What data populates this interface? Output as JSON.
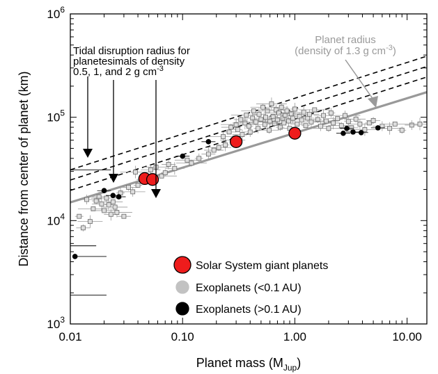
{
  "chart_data": {
    "type": "scatter",
    "xlabel_main": "Planet mass (M",
    "xlabel_sub": "Jup",
    "xlabel_close": ")",
    "ylabel": "Distance from center of planet (km)",
    "x_scale": "log",
    "y_scale": "log",
    "xlim": [
      0.01,
      15
    ],
    "ylim": [
      1000,
      1000000
    ],
    "x_ticks": [
      {
        "value": 0.01,
        "label": "0.01"
      },
      {
        "value": 0.1,
        "label": "0.10"
      },
      {
        "value": 1,
        "label": "1.00"
      },
      {
        "value": 10,
        "label": "10.00"
      }
    ],
    "y_ticks": [
      {
        "value": 1000,
        "base": "10",
        "exp": "3"
      },
      {
        "value": 10000,
        "base": "10",
        "exp": "4"
      },
      {
        "value": 100000,
        "base": "10",
        "exp": "5"
      },
      {
        "value": 1000000,
        "base": "10",
        "exp": "6"
      }
    ],
    "grid": false,
    "legend_position": "bottom-right",
    "legend": [
      {
        "label": "Solar System giant planets",
        "color": "#ee1c1c",
        "edge": "#000000"
      },
      {
        "label": "Exoplanets (<0.1 AU)",
        "color": "#c2c2c2",
        "edge": "#c2c2c2"
      },
      {
        "label": "Exoplanets (>0.1 AU)",
        "color": "#000000",
        "edge": "#000000"
      }
    ],
    "lines": [
      {
        "name": "tidal disruption, density 0.5",
        "style": "dashed",
        "color": "#000000",
        "x": [
          0.01,
          15
        ],
        "y": [
          31000,
          390000
        ]
      },
      {
        "name": "tidal disruption, density 1",
        "style": "dashed",
        "color": "#000000",
        "x": [
          0.01,
          15
        ],
        "y": [
          24700,
          310000
        ]
      },
      {
        "name": "tidal disruption, density 2",
        "style": "dashed",
        "color": "#000000",
        "x": [
          0.01,
          15
        ],
        "y": [
          19600,
          245000
        ]
      },
      {
        "name": "planet radius, density 1.3",
        "style": "solid",
        "color": "#999999",
        "x": [
          0.01,
          15
        ],
        "y": [
          15000,
          175000
        ]
      }
    ],
    "solar_system": [
      {
        "x": 0.046,
        "y": 25500
      },
      {
        "x": 0.054,
        "y": 25000
      },
      {
        "x": 0.3,
        "y": 58000
      },
      {
        "x": 1.0,
        "y": 70000
      }
    ],
    "exo_far": [
      {
        "x": 0.011,
        "y": 4500,
        "xerr": [
          0.011,
          0.021
        ]
      },
      {
        "x": 0.02,
        "y": 19500
      },
      {
        "x": 0.024,
        "y": 17500
      },
      {
        "x": 0.027,
        "y": 17000
      },
      {
        "x": 0.1,
        "y": 42000
      },
      {
        "x": 0.17,
        "y": 58000
      },
      {
        "x": 2.7,
        "y": 70000
      },
      {
        "x": 2.9,
        "y": 78000
      },
      {
        "x": 3.3,
        "y": 72000
      },
      {
        "x": 3.9,
        "y": 71000
      },
      {
        "x": 5.5,
        "y": 79000
      }
    ],
    "exo_close_xerr_only": [
      {
        "x": 0.011,
        "y": 5700,
        "xerr": [
          0.01,
          0.017
        ]
      },
      {
        "x": 0.011,
        "y": 1900,
        "xerr": [
          0.01,
          0.021
        ]
      },
      {
        "x": 0.011,
        "y": 31000,
        "xerr": [
          0.01,
          0.023
        ]
      }
    ],
    "exo_close": {
      "marker": "square",
      "color": "#c2c2c2",
      "points": [
        [
          0.012,
          11000
        ],
        [
          0.013,
          8500
        ],
        [
          0.014,
          16000
        ],
        [
          0.015,
          9800
        ],
        [
          0.016,
          13000
        ],
        [
          0.017,
          15500
        ],
        [
          0.018,
          17000
        ],
        [
          0.019,
          14500
        ],
        [
          0.02,
          12500
        ],
        [
          0.021,
          16500
        ],
        [
          0.022,
          14200
        ],
        [
          0.023,
          11500
        ],
        [
          0.024,
          15200
        ],
        [
          0.025,
          13500
        ],
        [
          0.026,
          12000
        ],
        [
          0.028,
          18500
        ],
        [
          0.03,
          11000
        ],
        [
          0.033,
          21000
        ],
        [
          0.036,
          19000
        ],
        [
          0.038,
          29500
        ],
        [
          0.04,
          22000
        ],
        [
          0.045,
          25000
        ],
        [
          0.052,
          31000
        ],
        [
          0.058,
          33000
        ],
        [
          0.065,
          27000
        ],
        [
          0.07,
          29000
        ],
        [
          0.075,
          35000
        ],
        [
          0.085,
          32000
        ],
        [
          0.11,
          38500
        ],
        [
          0.12,
          36000
        ],
        [
          0.14,
          40000
        ],
        [
          0.17,
          44000
        ],
        [
          0.19,
          48000
        ],
        [
          0.21,
          51000
        ],
        [
          0.23,
          65000
        ],
        [
          0.24,
          54000
        ],
        [
          0.26,
          72000
        ],
        [
          0.27,
          80000
        ],
        [
          0.28,
          60000
        ],
        [
          0.3,
          85000
        ],
        [
          0.31,
          76000
        ],
        [
          0.33,
          95000
        ],
        [
          0.34,
          68000
        ],
        [
          0.36,
          88000
        ],
        [
          0.37,
          105000
        ],
        [
          0.39,
          82000
        ],
        [
          0.4,
          72000
        ],
        [
          0.42,
          98000
        ],
        [
          0.43,
          115000
        ],
        [
          0.45,
          90000
        ],
        [
          0.47,
          78000
        ],
        [
          0.48,
          107000
        ],
        [
          0.5,
          95000
        ],
        [
          0.52,
          125000
        ],
        [
          0.54,
          85000
        ],
        [
          0.55,
          100000
        ],
        [
          0.57,
          115000
        ],
        [
          0.59,
          75000
        ],
        [
          0.6,
          92000
        ],
        [
          0.62,
          135000
        ],
        [
          0.64,
          102000
        ],
        [
          0.66,
          87000
        ],
        [
          0.68,
          118000
        ],
        [
          0.7,
          95000
        ],
        [
          0.72,
          110000
        ],
        [
          0.74,
          80000
        ],
        [
          0.76,
          125000
        ],
        [
          0.78,
          98000
        ],
        [
          0.8,
          88000
        ],
        [
          0.82,
          105000
        ],
        [
          0.85,
          115000
        ],
        [
          0.88,
          92000
        ],
        [
          0.9,
          78000
        ],
        [
          0.93,
          108000
        ],
        [
          0.96,
          98000
        ],
        [
          1.0,
          120000
        ],
        [
          1.05,
          86000
        ],
        [
          1.1,
          102000
        ],
        [
          1.15,
          94000
        ],
        [
          1.2,
          112000
        ],
        [
          1.25,
          83000
        ],
        [
          1.3,
          98000
        ],
        [
          1.35,
          107000
        ],
        [
          1.4,
          90000
        ],
        [
          1.5,
          118000
        ],
        [
          1.6,
          95000
        ],
        [
          1.7,
          82000
        ],
        [
          1.8,
          104000
        ],
        [
          1.9,
          92000
        ],
        [
          2.0,
          78000
        ],
        [
          2.1,
          110000
        ],
        [
          2.2,
          88000
        ],
        [
          2.4,
          97000
        ],
        [
          2.6,
          83000
        ],
        [
          2.8,
          104000
        ],
        [
          3.0,
          91000
        ],
        [
          3.2,
          79000
        ],
        [
          3.5,
          96000
        ],
        [
          3.8,
          86000
        ],
        [
          4.2,
          76000
        ],
        [
          4.6,
          88000
        ],
        [
          5.0,
          93000
        ],
        [
          6.0,
          82000
        ],
        [
          7.0,
          78000
        ],
        [
          7.8,
          86000
        ],
        [
          9.0,
          75000
        ],
        [
          11.0,
          84000
        ],
        [
          13.0,
          86000
        ]
      ]
    }
  },
  "annotations": {
    "tidal_line1": "Tidal disruption radius for",
    "tidal_line2": "planetesimals of density",
    "tidal_line3": "0.5, 1, and 2 g cm",
    "tidal_sup": "-3",
    "radius_line1": "Planet radius",
    "radius_line2": "(density of 1.3 g cm",
    "radius_sup": "-3",
    "radius_close": ")"
  },
  "colors": {
    "axis": "#000000",
    "radius_text": "#9a9a9a",
    "errorbar": "#999999"
  }
}
